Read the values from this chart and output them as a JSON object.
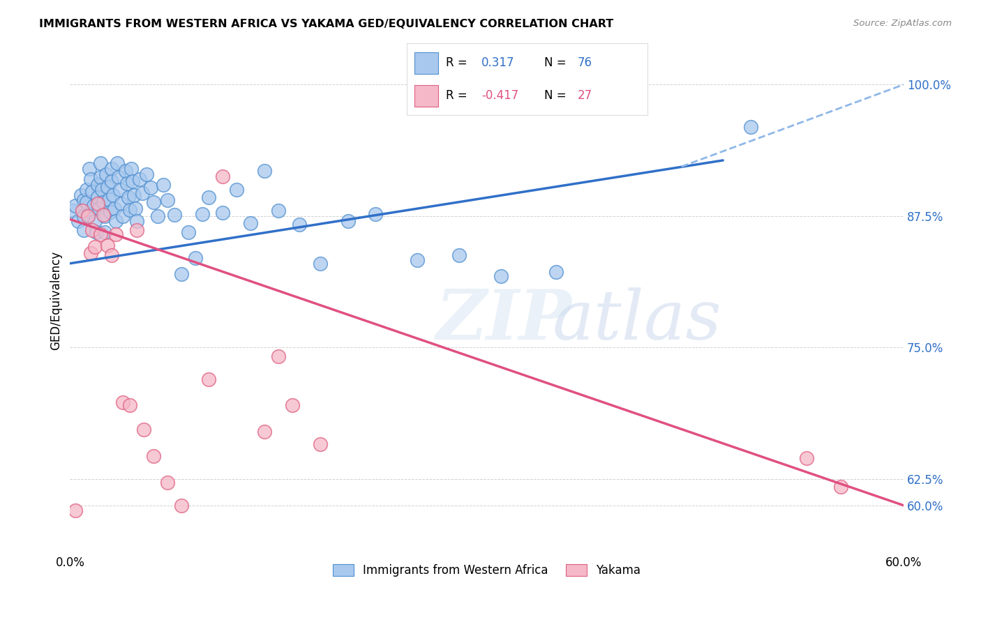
{
  "title": "IMMIGRANTS FROM WESTERN AFRICA VS YAKAMA GED/EQUIVALENCY CORRELATION CHART",
  "source": "Source: ZipAtlas.com",
  "ylabel": "GED/Equivalency",
  "xmin": 0.0,
  "xmax": 0.6,
  "ymin": 0.555,
  "ymax": 1.035,
  "r_blue": "0.317",
  "n_blue": "76",
  "r_pink": "-0.417",
  "n_pink": "27",
  "legend_blue_label": "Immigrants from Western Africa",
  "legend_pink_label": "Yakama",
  "blue_color": "#a8c8ee",
  "blue_edge_color": "#5090d0",
  "pink_color": "#f5b8c8",
  "pink_edge_color": "#e06080",
  "blue_line_color": "#3070c8",
  "pink_line_color": "#e05080",
  "dash_line_color": "#90b8e8",
  "ytick_vals": [
    0.6,
    0.625,
    0.75,
    0.875,
    1.0
  ],
  "ytick_labels": [
    "60.0%",
    "62.5%",
    "75.0%",
    "87.5%",
    "100.0%"
  ],
  "blue_scatter_x": [
    0.002,
    0.004,
    0.006,
    0.008,
    0.01,
    0.01,
    0.01,
    0.012,
    0.012,
    0.013,
    0.014,
    0.015,
    0.016,
    0.017,
    0.018,
    0.019,
    0.02,
    0.02,
    0.021,
    0.022,
    0.022,
    0.023,
    0.024,
    0.025,
    0.025,
    0.026,
    0.027,
    0.028,
    0.029,
    0.03,
    0.03,
    0.031,
    0.032,
    0.033,
    0.034,
    0.035,
    0.036,
    0.037,
    0.038,
    0.04,
    0.041,
    0.042,
    0.043,
    0.044,
    0.045,
    0.046,
    0.047,
    0.048,
    0.05,
    0.052,
    0.055,
    0.058,
    0.06,
    0.063,
    0.067,
    0.07,
    0.075,
    0.08,
    0.085,
    0.09,
    0.095,
    0.1,
    0.11,
    0.12,
    0.13,
    0.14,
    0.15,
    0.165,
    0.18,
    0.2,
    0.22,
    0.25,
    0.28,
    0.31,
    0.35,
    0.49
  ],
  "blue_scatter_y": [
    0.88,
    0.885,
    0.87,
    0.895,
    0.89,
    0.875,
    0.862,
    0.9,
    0.888,
    0.876,
    0.92,
    0.91,
    0.898,
    0.885,
    0.87,
    0.86,
    0.905,
    0.893,
    0.882,
    0.925,
    0.912,
    0.9,
    0.888,
    0.875,
    0.86,
    0.915,
    0.903,
    0.891,
    0.879,
    0.92,
    0.908,
    0.895,
    0.882,
    0.87,
    0.925,
    0.912,
    0.9,
    0.887,
    0.875,
    0.918,
    0.906,
    0.893,
    0.881,
    0.92,
    0.908,
    0.895,
    0.882,
    0.87,
    0.91,
    0.897,
    0.915,
    0.902,
    0.888,
    0.875,
    0.905,
    0.89,
    0.876,
    0.82,
    0.86,
    0.835,
    0.877,
    0.893,
    0.878,
    0.9,
    0.868,
    0.918,
    0.88,
    0.867,
    0.83,
    0.87,
    0.877,
    0.833,
    0.838,
    0.818,
    0.822,
    0.96
  ],
  "pink_scatter_x": [
    0.004,
    0.009,
    0.013,
    0.015,
    0.016,
    0.018,
    0.02,
    0.022,
    0.024,
    0.027,
    0.03,
    0.033,
    0.038,
    0.043,
    0.048,
    0.053,
    0.06,
    0.07,
    0.08,
    0.1,
    0.11,
    0.14,
    0.15,
    0.16,
    0.18,
    0.53,
    0.555
  ],
  "pink_scatter_y": [
    0.595,
    0.88,
    0.875,
    0.84,
    0.862,
    0.846,
    0.887,
    0.858,
    0.876,
    0.847,
    0.838,
    0.858,
    0.698,
    0.695,
    0.862,
    0.672,
    0.647,
    0.622,
    0.6,
    0.72,
    0.913,
    0.67,
    0.742,
    0.695,
    0.658,
    0.645,
    0.618
  ],
  "blue_line_x0": 0.0,
  "blue_line_x1": 0.47,
  "blue_line_y0": 0.83,
  "blue_line_y1": 0.928,
  "dash_line_x0": 0.44,
  "dash_line_x1": 0.6,
  "dash_line_y0": 0.922,
  "dash_line_y1": 1.0,
  "pink_line_x0": 0.0,
  "pink_line_x1": 0.6,
  "pink_line_y0": 0.872,
  "pink_line_y1": 0.6
}
